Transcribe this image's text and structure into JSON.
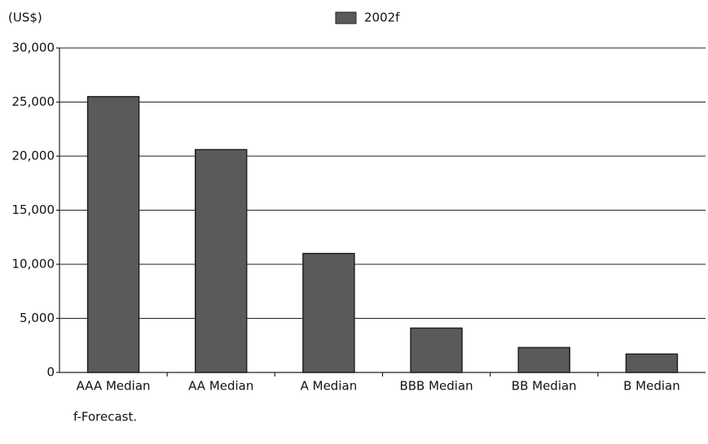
{
  "chart_data": {
    "type": "bar",
    "y_label": "(US$)",
    "categories": [
      "AAA Median",
      "AA Median",
      "A Median",
      "BBB Median",
      "BB Median",
      "B Median"
    ],
    "series": [
      {
        "name": "2002f",
        "color": "#5a5a5a",
        "values": [
          25500,
          20600,
          11000,
          4100,
          2300,
          1700
        ]
      }
    ],
    "ylim": [
      0,
      30000
    ],
    "yticks": [
      0,
      {
        "value": 5000,
        "label": "5,000"
      },
      {
        "value": 10000,
        "label": "10,000"
      },
      {
        "value": 15000,
        "label": "15,000"
      },
      {
        "value": 20000,
        "label": "20,000"
      },
      {
        "value": 25000,
        "label": "25,000"
      },
      {
        "value": 30000,
        "label": "30,000"
      }
    ],
    "grid": true,
    "legend": "top",
    "note": "f-Forecast."
  }
}
